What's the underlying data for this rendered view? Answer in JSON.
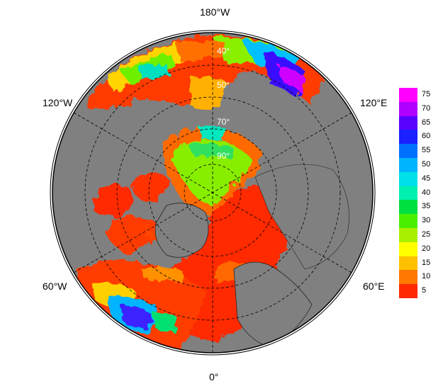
{
  "map": {
    "projection": "north-polar-stereographic",
    "land_color": "#808080",
    "ocean_background": "#ffffff",
    "longitude_labels": {
      "top": "180°W",
      "bottom": "0°",
      "upper_left": "120°W",
      "upper_right": "120°E",
      "lower_left": "60°W",
      "lower_right": "60°E"
    },
    "latitude_labels": [
      "40°",
      "50°",
      "70°",
      "90°"
    ]
  },
  "colorbar": {
    "ticks": [
      "75",
      "70",
      "65",
      "60",
      "55",
      "50",
      "45",
      "40",
      "35",
      "30",
      "25",
      "20",
      "15",
      "10",
      "5"
    ],
    "colors": [
      "#ff00ff",
      "#b000ff",
      "#5a00ff",
      "#1a20ff",
      "#0070ff",
      "#00b4ff",
      "#00e0e8",
      "#00f0b0",
      "#00e040",
      "#4af000",
      "#a8f000",
      "#ffff00",
      "#ffc000",
      "#ff7800",
      "#ff2800"
    ]
  }
}
